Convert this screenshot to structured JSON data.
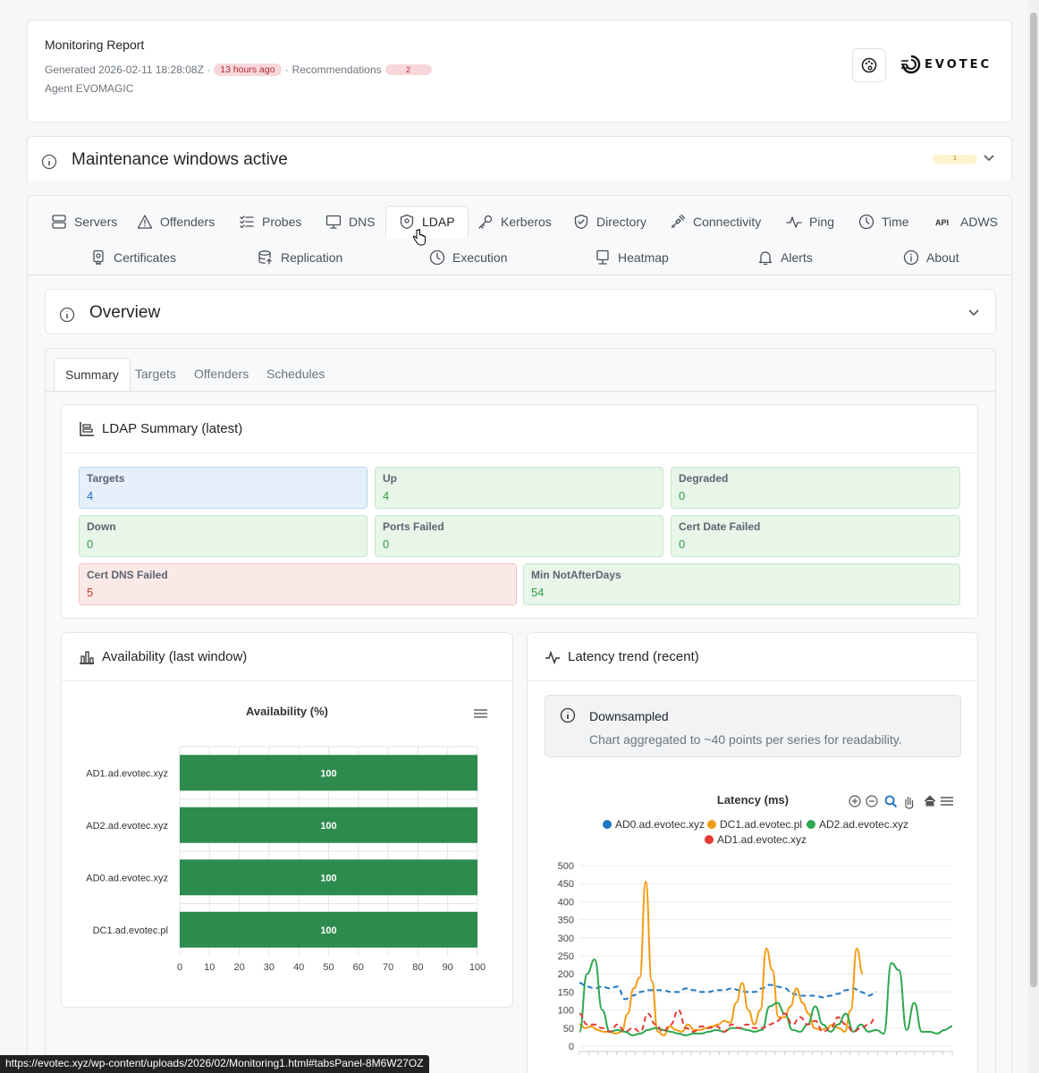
{
  "header": {
    "title": "Monitoring Report",
    "generated": "Generated 2026-02-11 18:28:08Z ·",
    "age_badge": "13 hours ago",
    "separator": "·",
    "recommendations_label": "Recommendations",
    "recommendations_count": "2",
    "agent": "Agent EVOMAGIC",
    "logo_text": "EVOTEC"
  },
  "maintenance": {
    "title": "Maintenance windows active",
    "count": "1"
  },
  "nav": {
    "row1": [
      {
        "label": "Servers",
        "icon": "server-icon"
      },
      {
        "label": "Offenders",
        "icon": "warning-icon"
      },
      {
        "label": "Probes",
        "icon": "checklist-icon"
      },
      {
        "label": "DNS",
        "icon": "monitor-icon"
      },
      {
        "label": "LDAP",
        "icon": "shield-icon",
        "active": true
      },
      {
        "label": "Kerberos",
        "icon": "key-icon"
      },
      {
        "label": "Directory",
        "icon": "shield-check-icon"
      },
      {
        "label": "Connectivity",
        "icon": "plug-icon"
      },
      {
        "label": "Ping",
        "icon": "pulse-icon"
      },
      {
        "label": "Time",
        "icon": "clock-icon"
      },
      {
        "label": "ADWS",
        "icon": "api-icon",
        "icon_text": "API"
      }
    ],
    "row2": [
      {
        "label": "Certificates",
        "icon": "certificate-icon"
      },
      {
        "label": "Replication",
        "icon": "database-icon"
      },
      {
        "label": "Execution",
        "icon": "clock-icon"
      },
      {
        "label": "Heatmap",
        "icon": "computer-icon"
      },
      {
        "label": "Alerts",
        "icon": "bell-icon"
      },
      {
        "label": "About",
        "icon": "info-icon"
      }
    ]
  },
  "overview": {
    "title": "Overview"
  },
  "subtabs": [
    "Summary",
    "Targets",
    "Offenders",
    "Schedules"
  ],
  "ldap_summary": {
    "title": "LDAP Summary (latest)",
    "stats": [
      {
        "label": "Targets",
        "value": "4",
        "tone": "blue"
      },
      {
        "label": "Up",
        "value": "4",
        "tone": "green"
      },
      {
        "label": "Degraded",
        "value": "0",
        "tone": "green"
      },
      {
        "label": "Down",
        "value": "0",
        "tone": "green"
      },
      {
        "label": "Ports Failed",
        "value": "0",
        "tone": "green"
      },
      {
        "label": "Cert Date Failed",
        "value": "0",
        "tone": "green"
      },
      {
        "label": "Cert DNS Failed",
        "value": "5",
        "tone": "red"
      },
      {
        "label": "Min NotAfterDays",
        "value": "54",
        "tone": "green"
      }
    ]
  },
  "availability": {
    "card_title": "Availability (last window)"
  },
  "latency": {
    "card_title": "Latency trend (recent)",
    "notice_title": "Downsampled",
    "notice_text": "Chart aggregated to ~40 points per series for readability."
  },
  "chart_data": [
    {
      "type": "bar",
      "orientation": "horizontal",
      "title": "Availability (%)",
      "categories": [
        "AD1.ad.evotec.xyz",
        "AD2.ad.evotec.xyz",
        "AD0.ad.evotec.xyz",
        "DC1.ad.evotec.pl"
      ],
      "values": [
        100,
        100,
        100,
        100
      ],
      "data_labels": [
        "100",
        "100",
        "100",
        "100"
      ],
      "xlim": [
        0,
        100
      ],
      "xticks": [
        "0",
        "10",
        "20",
        "30",
        "40",
        "50",
        "60",
        "70",
        "80",
        "90",
        "100"
      ],
      "bar_color": "#2e8b4e",
      "grid": true
    },
    {
      "type": "line",
      "title": "Latency (ms)",
      "ylim": [
        0,
        500
      ],
      "yticks": [
        "0",
        "50",
        "100",
        "150",
        "200",
        "250",
        "300",
        "350",
        "400",
        "450",
        "500"
      ],
      "legend_position": "top",
      "grid": true,
      "series": [
        {
          "name": "AD0.ad.evotec.xyz",
          "color": "#1f77c4",
          "dashed": true,
          "values": [
            175,
            165,
            160,
            165,
            160,
            165,
            130,
            140,
            150,
            155,
            155,
            155,
            150,
            150,
            160,
            155,
            150,
            150,
            155,
            155,
            160,
            155,
            150,
            150,
            160,
            170,
            165,
            160,
            145,
            140,
            140,
            140,
            135,
            140,
            145,
            155,
            160,
            150,
            140,
            150
          ]
        },
        {
          "name": "DC1.ad.evotec.pl",
          "color": "#f39c12",
          "values": [
            60,
            50,
            55,
            45,
            40,
            40,
            35,
            40,
            90,
            160,
            190,
            455,
            180,
            40,
            30,
            55,
            45,
            40,
            60,
            45,
            45,
            50,
            55,
            60,
            70,
            65,
            120,
            175,
            100,
            60,
            100,
            270,
            210,
            80,
            80,
            110,
            160,
            120,
            90,
            50,
            45,
            50,
            60,
            50,
            40,
            100,
            270,
            200
          ]
        },
        {
          "name": "AD2.ad.evotec.xyz",
          "color": "#2fa84f",
          "values": [
            40,
            200,
            240,
            100,
            40,
            45,
            40,
            30,
            35,
            45,
            50,
            45,
            40,
            35,
            30,
            35,
            35,
            40,
            45,
            40,
            50,
            50,
            45,
            40,
            45,
            110,
            120,
            90,
            45,
            40,
            60,
            110,
            60,
            40,
            60,
            90,
            40,
            60,
            40,
            45,
            35,
            230,
            210,
            45,
            120,
            40,
            40,
            35,
            45,
            55
          ]
        },
        {
          "name": "AD1.ad.evotec.xyz",
          "color": "#e53935",
          "dashed": true,
          "values": [
            90,
            60,
            60,
            50,
            40,
            60,
            40,
            50,
            40,
            90,
            60,
            40,
            60,
            100,
            50,
            40,
            55,
            50,
            55,
            40,
            60,
            50,
            60,
            50,
            50,
            60,
            70,
            90,
            60,
            80,
            60,
            70,
            40,
            50,
            80,
            60,
            40,
            50,
            60,
            80
          ]
        }
      ]
    }
  ]
}
